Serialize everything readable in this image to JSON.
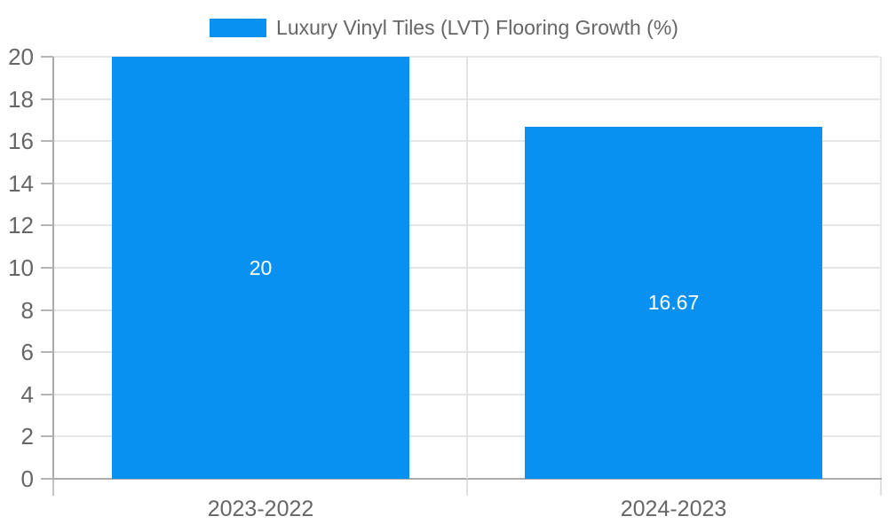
{
  "chart_data": {
    "type": "bar",
    "title": "Luxury Vinyl Tiles (LVT) Flooring Growth (%)",
    "categories": [
      "2023-2022",
      "2024-2023"
    ],
    "values": [
      20,
      16.67
    ],
    "value_labels": [
      "20",
      "16.67"
    ],
    "ylim": [
      0,
      20
    ],
    "yticks": [
      0,
      2,
      4,
      6,
      8,
      10,
      12,
      14,
      16,
      18,
      20
    ],
    "grid": true,
    "legend_position": "top-center",
    "colors": {
      "bar": "#0991f2",
      "value_label": "#ffffff",
      "axis_text": "#666666",
      "gridline": "#e6e6e6",
      "axis_line": "#ababab"
    }
  }
}
